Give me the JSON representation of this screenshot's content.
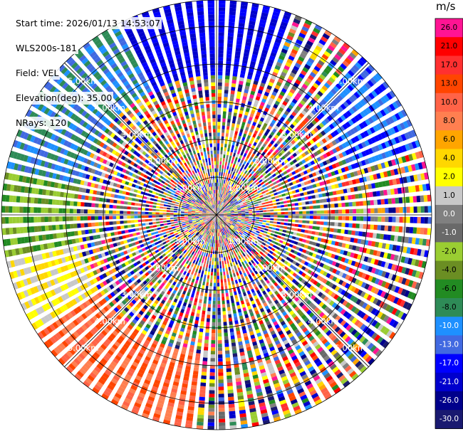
{
  "header": {
    "start_time": "Start time: 2026/01/13 14:53:07",
    "instrument": "WLS200s-181",
    "field": "Field: VEL",
    "elevation": "Elevation(deg): 35.00",
    "nrays": "NRays: 120"
  },
  "chart_data": {
    "type": "ppi",
    "field": "VEL",
    "units": "m/s",
    "elevation_deg": 35.0,
    "n_rays": 120,
    "range_rings_km": [
      1.0,
      2.0,
      3.0,
      4.0,
      5.0
    ],
    "range_ring_labels": [
      "1.00km",
      "2.00km",
      "3.00km",
      "4.00km",
      "5.00km"
    ],
    "max_range_km": 5.7,
    "colorbar": {
      "title": "m/s",
      "ticks": [
        "26.0",
        "21.0",
        "17.0",
        "13.0",
        "10.0",
        "8.0",
        "6.0",
        "4.0",
        "2.0",
        "1.0",
        "0.0",
        "-1.0",
        "-2.0",
        "-4.0",
        "-6.0",
        "-8.0",
        "-10.0",
        "-13.0",
        "-17.0",
        "-21.0",
        "-26.0",
        "-30.0"
      ],
      "colors": [
        "#ff1493",
        "#ff0000",
        "#ff3030",
        "#ff4500",
        "#ff6347",
        "#ff7f50",
        "#ffa500",
        "#ffd700",
        "#ffff00",
        "#c8c8c8",
        "#808080",
        "#696969",
        "#9acd32",
        "#6b8e23",
        "#228b22",
        "#2e8b57",
        "#1e90ff",
        "#4169e1",
        "#0000ff",
        "#0000cd",
        "#00008b",
        "#191970"
      ]
    }
  }
}
